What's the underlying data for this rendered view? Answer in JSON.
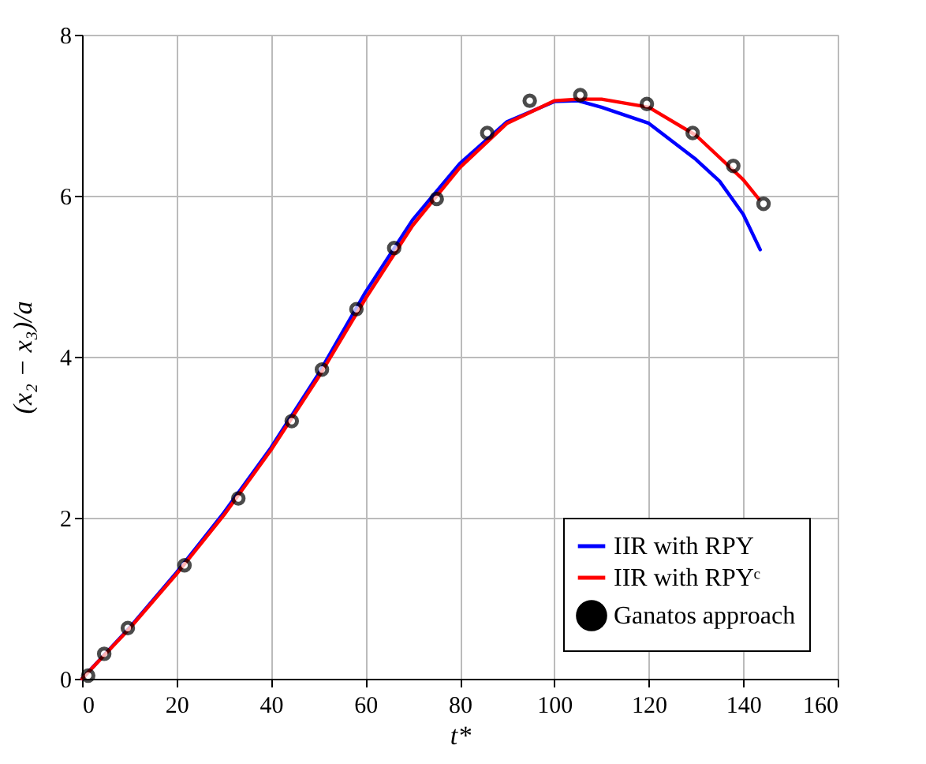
{
  "chart_data": {
    "type": "line",
    "xlabel": "t*",
    "ylabel": "(x₂ − x₃)/a",
    "xlim": [
      0,
      160
    ],
    "ylim": [
      0,
      8
    ],
    "xticks": [
      0,
      20,
      40,
      60,
      80,
      100,
      120,
      140,
      160
    ],
    "yticks": [
      0,
      2,
      4,
      6,
      8
    ],
    "grid": true,
    "legend": "bottom right",
    "series": [
      {
        "name": "IIR with RPY",
        "color": "#0000ff",
        "x": [
          0,
          10,
          20,
          30,
          40,
          50,
          60,
          70,
          80,
          90,
          100,
          105,
          110,
          120,
          130,
          135,
          140,
          143.6
        ],
        "values": [
          0,
          0.63,
          1.32,
          2.06,
          2.87,
          3.78,
          4.8,
          5.7,
          6.4,
          6.92,
          7.17,
          7.18,
          7.1,
          6.9,
          6.45,
          6.18,
          5.77,
          5.33
        ]
      },
      {
        "name": "IIR with RPYᶜ",
        "color": "#ff0000",
        "x": [
          0,
          10,
          20,
          30,
          40,
          50,
          60,
          70,
          80,
          90,
          100,
          105,
          110,
          120,
          130,
          140,
          143.3
        ],
        "values": [
          0,
          0.62,
          1.3,
          2.03,
          2.84,
          3.74,
          4.72,
          5.63,
          6.35,
          6.9,
          7.18,
          7.2,
          7.2,
          7.1,
          6.75,
          6.2,
          5.96
        ]
      },
      {
        "name": "Ganatos approach",
        "color": "#000000",
        "type": "scatter",
        "marker": "circle",
        "x": [
          1.3,
          4.7,
          9.7,
          21.7,
          33.1,
          44.4,
          50.8,
          58.1,
          66.1,
          75.1,
          85.8,
          94.8,
          105.5,
          119.6,
          129.3,
          137.9,
          144.3
        ],
        "values": [
          0.04,
          0.31,
          0.63,
          1.41,
          2.24,
          3.2,
          3.84,
          4.59,
          5.35,
          5.96,
          6.78,
          7.18,
          7.25,
          7.14,
          6.78,
          6.37,
          5.9
        ]
      }
    ]
  }
}
